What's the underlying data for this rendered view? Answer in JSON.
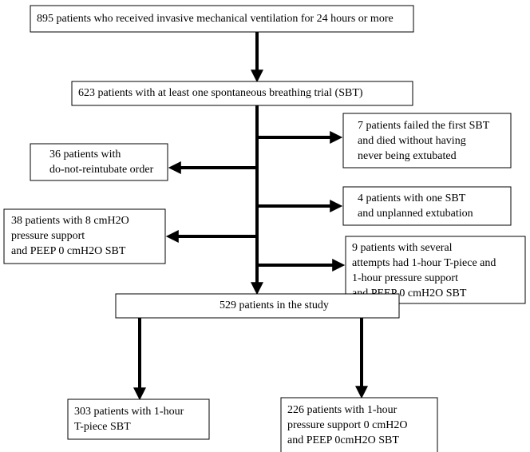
{
  "nodes": [
    {
      "lines": [
        "895 patients who received invasive mechanical ventilation  for 24 hours or more"
      ]
    },
    {
      "lines": [
        "623 patients with at least one spontaneous breathing trial (SBT)"
      ]
    },
    {
      "lines": [
        "7 patients failed the first SBT",
        "and died without having",
        "never being extubated"
      ]
    },
    {
      "lines": [
        "36 patients with",
        "do-not-reintubate order"
      ]
    },
    {
      "lines": [
        "4 patients with one SBT",
        "and unplanned extubation"
      ]
    },
    {
      "lines": [
        "38 patients with 8 cmH2O",
        "pressure support",
        "and PEEP 0 cmH2O SBT"
      ]
    },
    {
      "lines": [
        "9 patients with several",
        "attempts had 1-hour T-piece and",
        "1-hour pressure support",
        "and PEEP 0 cmH2O SBT"
      ]
    },
    {
      "lines": [
        "529 patients in the study"
      ]
    },
    {
      "lines": [
        "303 patients with 1-hour",
        "T-piece SBT"
      ]
    },
    {
      "lines": [
        "226 patients with 1-hour",
        "pressure support 0 cmH2O",
        "and PEEP 0cmH2O SBT"
      ]
    }
  ]
}
